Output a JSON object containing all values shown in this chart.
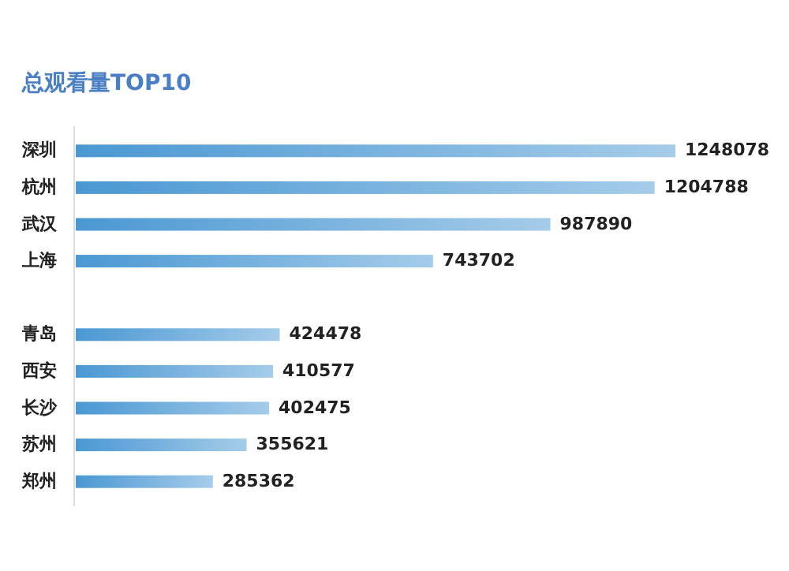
{
  "chart_data": {
    "type": "bar",
    "orientation": "horizontal",
    "title": "总观看量TOP10",
    "categories": [
      "深圳",
      "杭州",
      "武汉",
      "上海",
      null,
      "青岛",
      "西安",
      "长沙",
      "苏州",
      "郑州"
    ],
    "values": [
      1248078,
      1204788,
      987890,
      743702,
      null,
      424478,
      410577,
      402475,
      355621,
      285362
    ],
    "color": "#4a98d3",
    "data_labels": true
  }
}
